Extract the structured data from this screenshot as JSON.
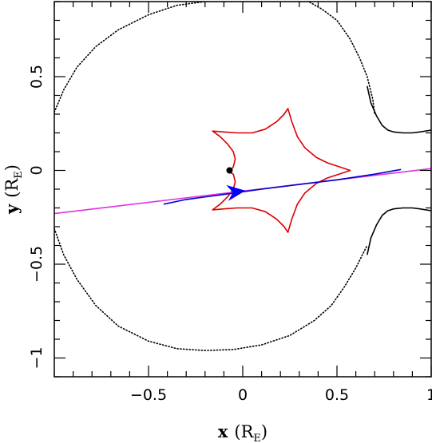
{
  "chart_data": {
    "type": "line",
    "title": "",
    "xlabel": {
      "main": "x",
      "unit_open": "(R",
      "unit_sub": "E",
      "unit_close": ")"
    },
    "ylabel": {
      "main": "y",
      "unit_open": "(R",
      "unit_sub": "E",
      "unit_close": ")"
    },
    "xlim": [
      -1.0,
      1.0
    ],
    "ylim": [
      -1.1,
      0.9
    ],
    "x_ticks": [
      {
        "value": -0.5,
        "label": "−0.5"
      },
      {
        "value": 0,
        "label": "0"
      },
      {
        "value": 0.5,
        "label": "0.5"
      },
      {
        "value": 1,
        "label": "1"
      }
    ],
    "y_ticks": [
      {
        "value": -1,
        "label": "−1"
      },
      {
        "value": -0.5,
        "label": "−0.5"
      },
      {
        "value": 0,
        "label": "0"
      },
      {
        "value": 0.5,
        "label": "0.5"
      }
    ],
    "x_minor_step": 0.1,
    "y_minor_step": 0.1,
    "grid": false,
    "series": [
      {
        "style": "dotted",
        "color": "#000000",
        "points": [
          [
            -1.0,
            0.31
          ],
          [
            -0.95,
            0.43
          ],
          [
            -0.88,
            0.55
          ],
          [
            -0.78,
            0.66
          ],
          [
            -0.66,
            0.75
          ],
          [
            -0.5,
            0.83
          ],
          [
            -0.35,
            0.88
          ],
          [
            -0.2,
            0.9
          ],
          [
            0.35,
            0.9
          ],
          [
            0.42,
            0.86
          ],
          [
            0.5,
            0.8
          ],
          [
            0.57,
            0.7
          ],
          [
            0.62,
            0.6
          ],
          [
            0.66,
            0.5
          ],
          [
            0.69,
            0.38
          ],
          [
            0.7,
            0.3
          ]
        ]
      },
      {
        "style": "solid",
        "color": "#000000",
        "points": [
          [
            0.66,
            0.45
          ],
          [
            0.68,
            0.36
          ],
          [
            0.71,
            0.29
          ],
          [
            0.74,
            0.24
          ],
          [
            0.77,
            0.215
          ],
          [
            0.8,
            0.205
          ],
          [
            0.85,
            0.2
          ],
          [
            0.9,
            0.2
          ],
          [
            0.94,
            0.205
          ],
          [
            1.0,
            0.215
          ]
        ]
      },
      {
        "style": "dotted",
        "color": "#000000",
        "points": [
          [
            -1.0,
            -0.31
          ],
          [
            -0.95,
            -0.45
          ],
          [
            -0.88,
            -0.58
          ],
          [
            -0.78,
            -0.72
          ],
          [
            -0.66,
            -0.83
          ],
          [
            -0.5,
            -0.91
          ],
          [
            -0.35,
            -0.95
          ],
          [
            -0.2,
            -0.96
          ],
          [
            -0.05,
            -0.955
          ],
          [
            0.1,
            -0.93
          ],
          [
            0.25,
            -0.88
          ],
          [
            0.38,
            -0.8
          ],
          [
            0.47,
            -0.72
          ],
          [
            0.54,
            -0.62
          ],
          [
            0.6,
            -0.52
          ],
          [
            0.64,
            -0.44
          ],
          [
            0.66,
            -0.4
          ]
        ]
      },
      {
        "style": "solid",
        "color": "#000000",
        "points": [
          [
            0.66,
            -0.45
          ],
          [
            0.68,
            -0.36
          ],
          [
            0.71,
            -0.29
          ],
          [
            0.74,
            -0.24
          ],
          [
            0.77,
            -0.215
          ],
          [
            0.8,
            -0.205
          ],
          [
            0.85,
            -0.2
          ],
          [
            0.9,
            -0.2
          ],
          [
            0.94,
            -0.205
          ],
          [
            1.0,
            -0.215
          ]
        ]
      },
      {
        "style": "solid",
        "color": "#dd0000",
        "points": [
          [
            -0.07,
            -0.01
          ],
          [
            -0.05,
            0.02
          ],
          [
            -0.04,
            0.06
          ],
          [
            -0.05,
            0.1
          ],
          [
            -0.08,
            0.14
          ],
          [
            -0.12,
            0.18
          ],
          [
            -0.16,
            0.21
          ],
          [
            -0.1,
            0.205
          ],
          [
            -0.03,
            0.2
          ],
          [
            0.05,
            0.2
          ],
          [
            0.12,
            0.22
          ],
          [
            0.18,
            0.26
          ],
          [
            0.22,
            0.3
          ],
          [
            0.24,
            0.33
          ],
          [
            0.26,
            0.26
          ],
          [
            0.29,
            0.18
          ],
          [
            0.33,
            0.12
          ],
          [
            0.39,
            0.07
          ],
          [
            0.45,
            0.04
          ],
          [
            0.51,
            0.02
          ],
          [
            0.57,
            0.0
          ],
          [
            0.51,
            -0.02
          ],
          [
            0.45,
            -0.04
          ],
          [
            0.39,
            -0.07
          ],
          [
            0.33,
            -0.12
          ],
          [
            0.29,
            -0.18
          ],
          [
            0.26,
            -0.26
          ],
          [
            0.24,
            -0.33
          ],
          [
            0.22,
            -0.3
          ],
          [
            0.18,
            -0.26
          ],
          [
            0.12,
            -0.22
          ],
          [
            0.05,
            -0.2
          ],
          [
            -0.03,
            -0.2
          ],
          [
            -0.1,
            -0.205
          ],
          [
            -0.16,
            -0.21
          ],
          [
            -0.12,
            -0.18
          ],
          [
            -0.08,
            -0.14
          ],
          [
            -0.05,
            -0.1
          ],
          [
            -0.04,
            -0.06
          ],
          [
            -0.05,
            -0.02
          ],
          [
            -0.07,
            -0.01
          ]
        ]
      },
      {
        "style": "solid",
        "color": "#dd33dd",
        "points": [
          [
            -1.0,
            -0.23
          ],
          [
            1.0,
            0.01
          ]
        ]
      },
      {
        "style": "solid",
        "color": "#0000cc",
        "points": [
          [
            -0.42,
            -0.18
          ],
          [
            -0.3,
            -0.155
          ],
          [
            -0.1,
            -0.128
          ],
          [
            0.1,
            -0.1
          ],
          [
            0.3,
            -0.075
          ],
          [
            0.5,
            -0.05
          ],
          [
            0.7,
            -0.02
          ],
          [
            0.84,
            0.005
          ]
        ]
      }
    ],
    "markers": [
      {
        "type": "dot",
        "x": -0.07,
        "y": 0.0,
        "color": "#000000"
      },
      {
        "type": "arrow",
        "x": -0.04,
        "y": -0.115,
        "direction": [
          1.0,
          0.13
        ],
        "color": "#0000ff"
      }
    ]
  }
}
